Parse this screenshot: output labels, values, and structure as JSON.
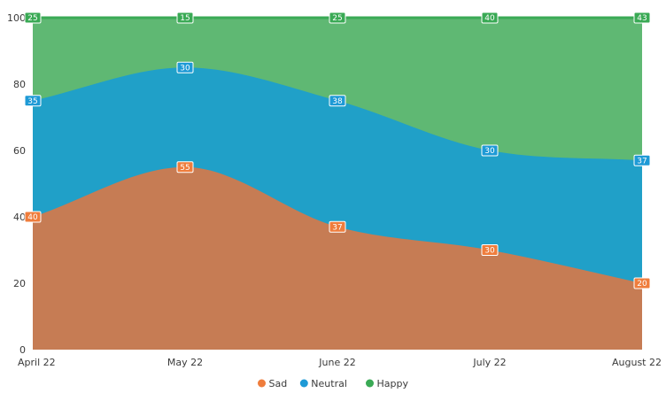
{
  "chart_data": {
    "type": "area",
    "stacked": true,
    "categories": [
      "April 22",
      "May 22",
      "June 22",
      "July 22",
      "August 22"
    ],
    "series": [
      {
        "name": "Sad",
        "values": [
          40,
          55,
          37,
          30,
          20
        ],
        "color": "#c67c54",
        "marker_color": "#ef7d3c"
      },
      {
        "name": "Neutral",
        "values": [
          35,
          30,
          38,
          30,
          37
        ],
        "color": "#20a0c8",
        "marker_color": "#1e9ad6"
      },
      {
        "name": "Happy",
        "values": [
          25,
          15,
          25,
          40,
          43
        ],
        "color": "#5fb873",
        "marker_color": "#3aaa55"
      }
    ],
    "ylim": [
      0,
      100
    ],
    "yticks": [
      "0",
      "20",
      "40",
      "60",
      "80",
      "100"
    ],
    "grid": false,
    "legend_position": "bottom-center",
    "data_labels": true
  }
}
